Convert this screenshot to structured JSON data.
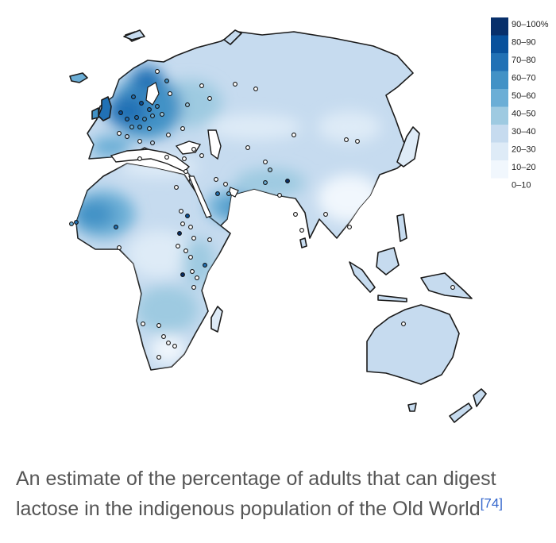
{
  "legend": {
    "classes": [
      {
        "label": "90–100%",
        "color": "#08306b"
      },
      {
        "label": "80–90",
        "color": "#08519c"
      },
      {
        "label": "70–80",
        "color": "#2171b5"
      },
      {
        "label": "60–70",
        "color": "#4292c6"
      },
      {
        "label": "50–60",
        "color": "#6baed6"
      },
      {
        "label": "40–50",
        "color": "#9ecae1"
      },
      {
        "label": "30–40",
        "color": "#c6dbef"
      },
      {
        "label": "20–30",
        "color": "#deebf7"
      },
      {
        "label": "10–20",
        "color": "#f1f7fd"
      },
      {
        "label": "0–10",
        "color": "#ffffff"
      }
    ]
  },
  "caption": {
    "text": "An estimate of the percentage of adults that can digest lactose in the indigenous population of the Old World",
    "reference": "[74]"
  }
}
